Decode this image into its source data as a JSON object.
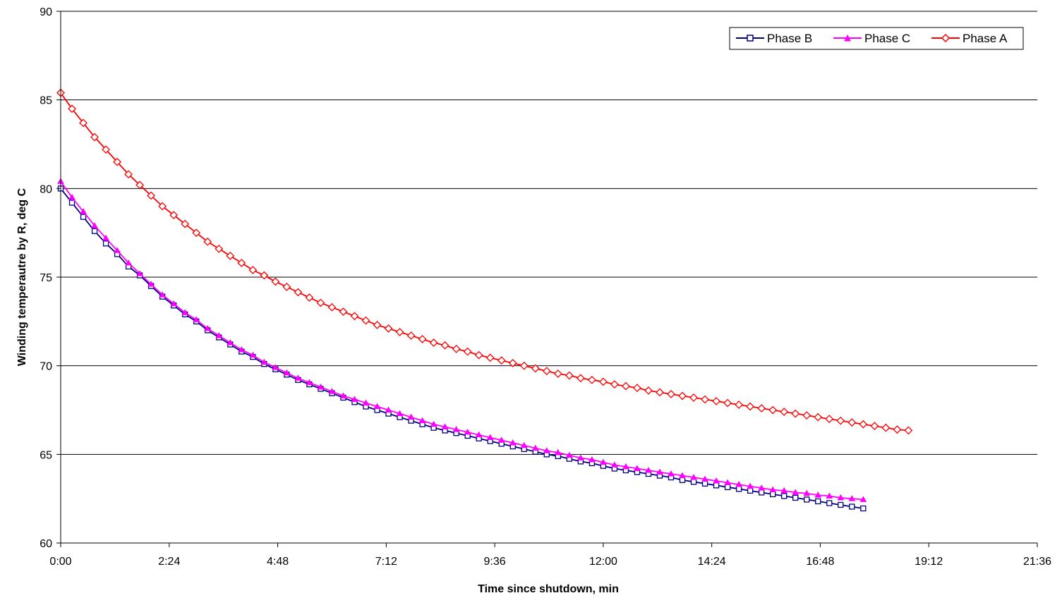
{
  "chart_data": {
    "type": "line",
    "xlabel": "Time since shutdown, min",
    "ylabel": "Winding temperautre by R, deg C",
    "x_unit": "minutes",
    "x_tick_labels": [
      "0:00",
      "2:24",
      "4:48",
      "7:12",
      "9:36",
      "12:00",
      "14:24",
      "16:48",
      "19:12",
      "21:36"
    ],
    "x_tick_values": [
      0,
      2.4,
      4.8,
      7.2,
      9.6,
      12,
      14.4,
      16.8,
      19.2,
      21.6
    ],
    "y_tick_labels": [
      "60",
      "65",
      "70",
      "75",
      "80",
      "85",
      "90"
    ],
    "y_tick_values": [
      60,
      65,
      70,
      75,
      80,
      85,
      90
    ],
    "xlim": [
      0,
      21.6
    ],
    "ylim": [
      60,
      90
    ],
    "grid": "horizontal",
    "legend_position": "top-right",
    "sample_interval_min": 0.25,
    "series": [
      {
        "name": "Phase B",
        "color": "#000080",
        "marker": "square",
        "values": [
          80.0,
          79.2,
          78.4,
          77.6,
          76.9,
          76.3,
          75.6,
          75.1,
          74.5,
          73.9,
          73.4,
          72.9,
          72.5,
          72.0,
          71.6,
          71.2,
          70.8,
          70.5,
          70.1,
          69.8,
          69.5,
          69.2,
          68.95,
          68.7,
          68.45,
          68.2,
          67.95,
          67.7,
          67.5,
          67.3,
          67.1,
          66.9,
          66.7,
          66.5,
          66.35,
          66.2,
          66.05,
          65.9,
          65.75,
          65.6,
          65.45,
          65.3,
          65.15,
          65.0,
          64.9,
          64.75,
          64.6,
          64.5,
          64.35,
          64.2,
          64.1,
          64.0,
          63.9,
          63.8,
          63.7,
          63.55,
          63.45,
          63.35,
          63.25,
          63.15,
          63.05,
          62.95,
          62.85,
          62.75,
          62.65,
          62.55,
          62.45,
          62.35,
          62.25,
          62.15,
          62.05,
          61.95
        ]
      },
      {
        "name": "Phase C",
        "color": "#FF00FF",
        "marker": "triangle",
        "values": [
          80.4,
          79.5,
          78.7,
          77.9,
          77.2,
          76.5,
          75.8,
          75.2,
          74.6,
          74.0,
          73.5,
          73.0,
          72.6,
          72.1,
          71.7,
          71.3,
          70.9,
          70.6,
          70.2,
          69.9,
          69.6,
          69.3,
          69.05,
          68.8,
          68.55,
          68.3,
          68.1,
          67.9,
          67.7,
          67.5,
          67.3,
          67.1,
          66.9,
          66.7,
          66.55,
          66.4,
          66.25,
          66.1,
          65.95,
          65.8,
          65.65,
          65.5,
          65.35,
          65.2,
          65.1,
          64.95,
          64.8,
          64.7,
          64.55,
          64.4,
          64.3,
          64.2,
          64.1,
          64.0,
          63.9,
          63.8,
          63.7,
          63.6,
          63.5,
          63.4,
          63.3,
          63.2,
          63.1,
          63.0,
          62.95,
          62.85,
          62.8,
          62.7,
          62.65,
          62.55,
          62.5,
          62.45
        ]
      },
      {
        "name": "Phase A",
        "color": "#FF0000",
        "marker": "diamond",
        "values": [
          85.4,
          84.5,
          83.7,
          82.9,
          82.2,
          81.5,
          80.8,
          80.2,
          79.6,
          79.0,
          78.5,
          78.0,
          77.5,
          77.0,
          76.6,
          76.2,
          75.8,
          75.4,
          75.1,
          74.75,
          74.45,
          74.15,
          73.85,
          73.55,
          73.3,
          73.05,
          72.8,
          72.55,
          72.3,
          72.1,
          71.9,
          71.7,
          71.5,
          71.3,
          71.15,
          70.95,
          70.8,
          70.6,
          70.45,
          70.3,
          70.15,
          70.0,
          69.85,
          69.7,
          69.55,
          69.45,
          69.3,
          69.2,
          69.1,
          68.95,
          68.85,
          68.75,
          68.6,
          68.5,
          68.4,
          68.3,
          68.2,
          68.1,
          68.0,
          67.9,
          67.8,
          67.7,
          67.6,
          67.5,
          67.4,
          67.3,
          67.2,
          67.1,
          67.0,
          66.9,
          66.8,
          66.7,
          66.6,
          66.5,
          66.4,
          66.35
        ]
      }
    ]
  }
}
